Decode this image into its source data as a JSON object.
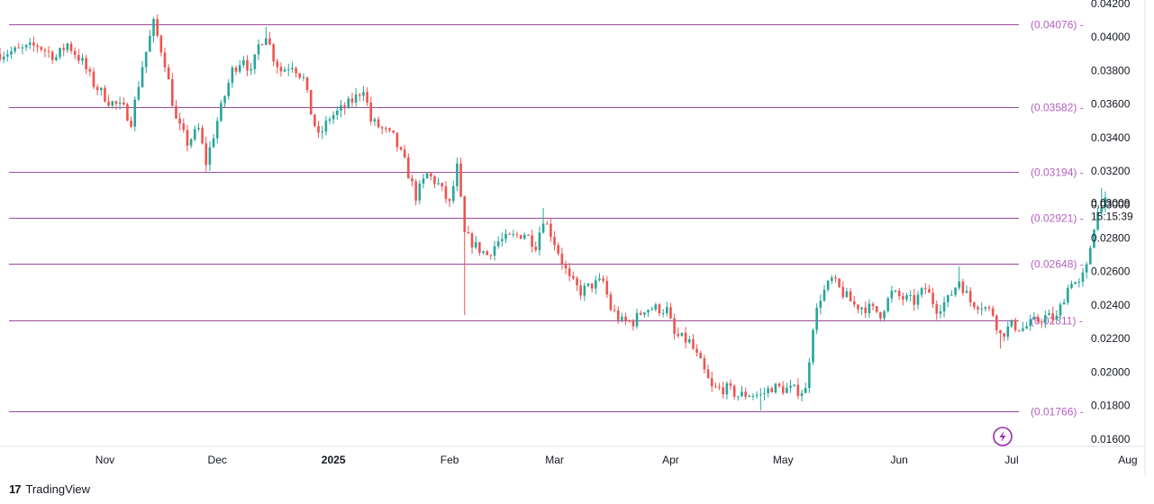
{
  "chart_data": {
    "type": "candlestick",
    "price_axis": {
      "ticks": [
        "0.04200",
        "0.04000",
        "0.03800",
        "0.03600",
        "0.03400",
        "0.03200",
        "0.03000",
        "0.02800",
        "0.02600",
        "0.02400",
        "0.02200",
        "0.02000",
        "0.01800",
        "0.01600"
      ],
      "range": [
        0.0154,
        0.042
      ]
    },
    "time_axis": {
      "labels": [
        {
          "text": "Nov",
          "day": 18
        },
        {
          "text": "Dec",
          "day": 48
        },
        {
          "text": "2025",
          "day": 79,
          "bold": true
        },
        {
          "text": "Feb",
          "day": 110
        },
        {
          "text": "Mar",
          "day": 138
        },
        {
          "text": "Apr",
          "day": 169
        },
        {
          "text": "May",
          "day": 199
        },
        {
          "text": "Jun",
          "day": 230
        },
        {
          "text": "Jul",
          "day": 260
        },
        {
          "text": "Aug",
          "day": 291
        }
      ],
      "day_range": [
        -10,
        298
      ]
    },
    "current_price": {
      "value": "0.03009",
      "numeric": 0.03009,
      "countdown": "15:15:39"
    },
    "levels": [
      {
        "label": "(0.04076)",
        "value": 0.04076
      },
      {
        "label": "(0.03582)",
        "value": 0.03582
      },
      {
        "label": "(0.03194)",
        "value": 0.03194
      },
      {
        "label": "(0.02921)",
        "value": 0.02921
      },
      {
        "label": "(0.02648)",
        "value": 0.02648
      },
      {
        "label": "(0.02311)",
        "value": 0.02311
      },
      {
        "label": "(0.01766)",
        "value": 0.01766
      }
    ],
    "anchors": [
      [
        -10,
        0.039
      ],
      [
        -5,
        0.0392
      ],
      [
        0,
        0.0395
      ],
      [
        5,
        0.0388
      ],
      [
        8,
        0.0396
      ],
      [
        12,
        0.0385
      ],
      [
        15,
        0.0372
      ],
      [
        19,
        0.0362
      ],
      [
        23,
        0.0357
      ],
      [
        25,
        0.035
      ],
      [
        28,
        0.0383
      ],
      [
        31,
        0.0408
      ],
      [
        34,
        0.0385
      ],
      [
        37,
        0.035
      ],
      [
        40,
        0.0337
      ],
      [
        43,
        0.0345
      ],
      [
        45,
        0.0325
      ],
      [
        48,
        0.035
      ],
      [
        52,
        0.038
      ],
      [
        55,
        0.0388
      ],
      [
        57,
        0.0378
      ],
      [
        59,
        0.0395
      ],
      [
        61,
        0.0402
      ],
      [
        63,
        0.0388
      ],
      [
        65,
        0.038
      ],
      [
        68,
        0.0384
      ],
      [
        71,
        0.0375
      ],
      [
        73,
        0.0355
      ],
      [
        75,
        0.034
      ],
      [
        78,
        0.0352
      ],
      [
        82,
        0.0358
      ],
      [
        85,
        0.0364
      ],
      [
        87,
        0.037
      ],
      [
        89,
        0.035
      ],
      [
        92,
        0.0345
      ],
      [
        95,
        0.034
      ],
      [
        98,
        0.0325
      ],
      [
        101,
        0.0305
      ],
      [
        104,
        0.0318
      ],
      [
        107,
        0.0312
      ],
      [
        110,
        0.03
      ],
      [
        112,
        0.0322
      ],
      [
        114,
        0.0282
      ],
      [
        117,
        0.0275
      ],
      [
        120,
        0.027
      ],
      [
        123,
        0.0278
      ],
      [
        126,
        0.028
      ],
      [
        130,
        0.0283
      ],
      [
        133,
        0.0276
      ],
      [
        135,
        0.0292
      ],
      [
        137,
        0.0283
      ],
      [
        139,
        0.0272
      ],
      [
        142,
        0.0255
      ],
      [
        145,
        0.0248
      ],
      [
        148,
        0.0252
      ],
      [
        151,
        0.0254
      ],
      [
        153,
        0.0238
      ],
      [
        156,
        0.023
      ],
      [
        159,
        0.023
      ],
      [
        162,
        0.0238
      ],
      [
        165,
        0.0238
      ],
      [
        168,
        0.0237
      ],
      [
        170,
        0.0222
      ],
      [
        174,
        0.0218
      ],
      [
        177,
        0.0205
      ],
      [
        180,
        0.019
      ],
      [
        184,
        0.019
      ],
      [
        187,
        0.0186
      ],
      [
        190,
        0.0187
      ],
      [
        193,
        0.0186
      ],
      [
        196,
        0.0191
      ],
      [
        199,
        0.019
      ],
      [
        203,
        0.0189
      ],
      [
        205,
        0.0189
      ],
      [
        207,
        0.0228
      ],
      [
        209,
        0.0245
      ],
      [
        212,
        0.0255
      ],
      [
        215,
        0.0247
      ],
      [
        218,
        0.024
      ],
      [
        222,
        0.0238
      ],
      [
        225,
        0.0235
      ],
      [
        228,
        0.0247
      ],
      [
        231,
        0.0244
      ],
      [
        234,
        0.0242
      ],
      [
        237,
        0.025
      ],
      [
        240,
        0.0238
      ],
      [
        243,
        0.0243
      ],
      [
        246,
        0.0255
      ],
      [
        249,
        0.0242
      ],
      [
        252,
        0.024
      ],
      [
        255,
        0.0235
      ],
      [
        257,
        0.0222
      ],
      [
        260,
        0.0228
      ],
      [
        263,
        0.0226
      ],
      [
        266,
        0.023
      ],
      [
        269,
        0.0233
      ],
      [
        272,
        0.0232
      ],
      [
        274,
        0.0245
      ],
      [
        276,
        0.0255
      ],
      [
        278,
        0.0252
      ],
      [
        280,
        0.0262
      ],
      [
        282,
        0.0288
      ],
      [
        284,
        0.0302
      ],
      [
        285,
        0.0301
      ]
    ],
    "spikes": [
      {
        "day": 45,
        "low": 0.032
      },
      {
        "day": 31,
        "high": 0.0412
      },
      {
        "day": 61,
        "high": 0.0406
      },
      {
        "day": 112,
        "high": 0.0328
      },
      {
        "day": 114,
        "low": 0.0234
      },
      {
        "day": 135,
        "high": 0.0298
      },
      {
        "day": 193,
        "low": 0.0177
      },
      {
        "day": 257,
        "low": 0.0214
      },
      {
        "day": 246,
        "high": 0.0263
      },
      {
        "day": 284,
        "high": 0.031
      }
    ],
    "colors": {
      "up": "#26a69a",
      "down": "#ef5350",
      "level_line": "#9c4a9c",
      "level_label": "#b45fbf",
      "axis_text": "#131722",
      "border": "#e0e3eb",
      "badge": "#9c27b0"
    }
  },
  "brand": {
    "logo": "17",
    "name": "TradingView"
  }
}
